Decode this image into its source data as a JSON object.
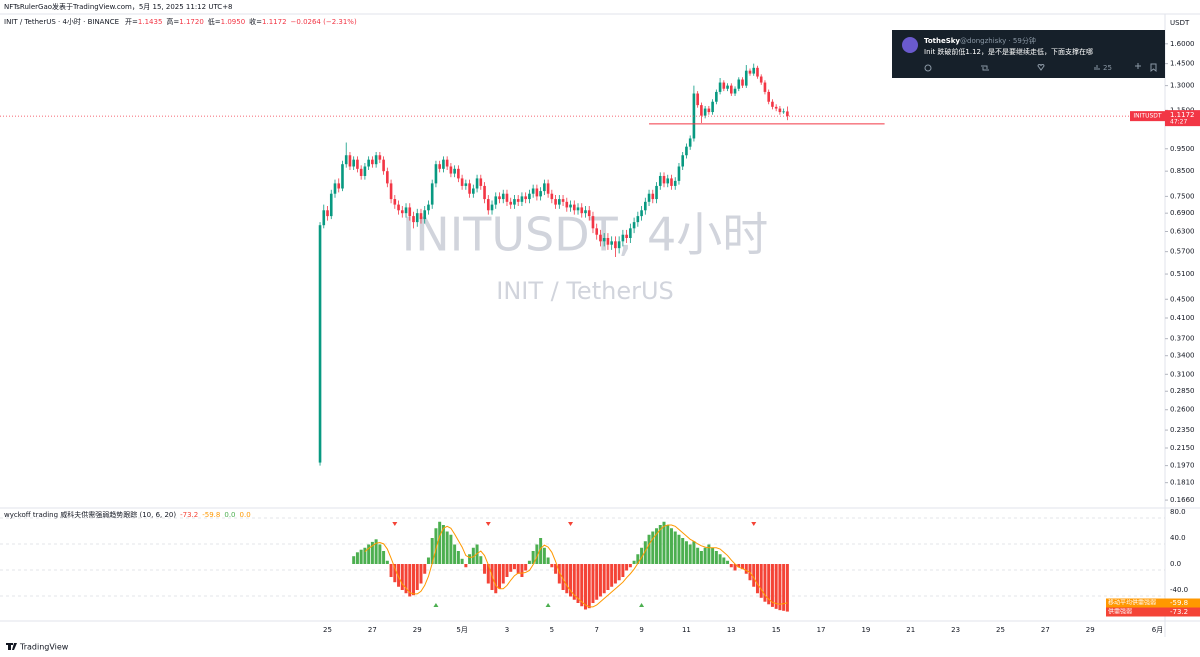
{
  "header": {
    "publisher": "NFTsRulerGao发表于TradingView.com，5月 15, 2025 11:12 UTC+8"
  },
  "chart_data": [
    {
      "type": "candlestick",
      "title": "INIT / TetherUS · 4小时 · BINANCE",
      "watermark": "INITUSDT, 4小时",
      "watermark_subtitle": "INIT / TetherUS",
      "ohlc_legend": [
        {
          "name": "开=",
          "value": {
            "value": 1.1435,
            "label": "1.1435"
          }
        },
        {
          "name": "高=",
          "value": {
            "value": 1.172,
            "label": "1.1720"
          }
        },
        {
          "name": "低=",
          "value": {
            "value": 1.095,
            "label": "1.0950"
          }
        },
        {
          "name": "收=",
          "value": {
            "value": 1.1172,
            "label": "1.1172"
          }
        }
      ],
      "change": "−0.0264 (−2.31%)",
      "symbol_tag": "INITUSDT",
      "countdown": "47:27",
      "y_unit": "USDT",
      "log_scale": true,
      "up_color": "#089981",
      "down_color": "#f23645",
      "open": [
        0.2,
        0.65,
        0.7,
        0.68,
        0.76,
        0.8,
        0.78,
        0.88,
        0.92,
        0.87,
        0.9,
        0.86,
        0.83,
        0.87,
        0.9,
        0.88,
        0.92,
        0.9,
        0.85,
        0.8,
        0.74,
        0.72,
        0.7,
        0.69,
        0.71,
        0.68,
        0.66,
        0.69,
        0.67,
        0.7,
        0.72,
        0.8,
        0.88,
        0.86,
        0.9,
        0.87,
        0.84,
        0.86,
        0.82,
        0.79,
        0.8,
        0.76,
        0.78,
        0.82,
        0.79,
        0.74,
        0.7,
        0.72,
        0.75,
        0.74,
        0.76,
        0.73,
        0.72,
        0.74,
        0.73,
        0.75,
        0.74,
        0.76,
        0.78,
        0.75,
        0.77,
        0.8,
        0.76,
        0.74,
        0.72,
        0.74,
        0.73,
        0.71,
        0.72,
        0.7,
        0.71,
        0.69,
        0.7,
        0.68,
        0.64,
        0.62,
        0.6,
        0.61,
        0.59,
        0.6,
        0.58,
        0.6,
        0.62,
        0.61,
        0.64,
        0.66,
        0.68,
        0.7,
        0.73,
        0.76,
        0.74,
        0.79,
        0.83,
        0.8,
        0.82,
        0.79,
        0.81,
        0.87,
        0.92,
        0.96,
        1.0,
        1.25,
        1.18,
        1.12,
        1.16,
        1.14,
        1.2,
        1.26,
        1.32,
        1.28,
        1.3,
        1.25,
        1.28,
        1.34,
        1.3,
        1.4,
        1.38,
        1.42,
        1.36,
        1.32,
        1.26,
        1.2,
        1.17,
        1.16,
        1.14,
        1.1435
      ],
      "high": [
        0.66,
        0.72,
        0.715,
        0.775,
        0.815,
        0.82,
        0.895,
        0.98,
        0.935,
        0.915,
        0.915,
        0.875,
        0.885,
        0.915,
        0.915,
        0.935,
        0.935,
        0.915,
        0.865,
        0.815,
        0.755,
        0.735,
        0.715,
        0.725,
        0.725,
        0.695,
        0.705,
        0.705,
        0.715,
        0.735,
        0.815,
        0.895,
        0.895,
        0.915,
        0.915,
        0.885,
        0.875,
        0.875,
        0.835,
        0.815,
        0.815,
        0.795,
        0.835,
        0.835,
        0.805,
        0.755,
        0.735,
        0.765,
        0.765,
        0.775,
        0.775,
        0.745,
        0.755,
        0.755,
        0.765,
        0.765,
        0.775,
        0.795,
        0.795,
        0.785,
        0.815,
        0.815,
        0.775,
        0.755,
        0.755,
        0.755,
        0.745,
        0.735,
        0.735,
        0.725,
        0.725,
        0.715,
        0.715,
        0.695,
        0.655,
        0.635,
        0.625,
        0.625,
        0.615,
        0.615,
        0.615,
        0.635,
        0.635,
        0.655,
        0.675,
        0.695,
        0.715,
        0.745,
        0.775,
        0.775,
        0.805,
        0.845,
        0.845,
        0.835,
        0.835,
        0.825,
        0.885,
        0.935,
        0.975,
        1.015,
        1.3,
        1.265,
        1.195,
        1.175,
        1.175,
        1.215,
        1.275,
        1.35,
        1.335,
        1.315,
        1.315,
        1.295,
        1.355,
        1.355,
        1.44,
        1.415,
        1.45,
        1.435,
        1.375,
        1.335,
        1.275,
        1.215,
        1.185,
        1.175,
        1.16,
        1.172
      ],
      "low": [
        0.197,
        0.64,
        0.665,
        0.67,
        0.745,
        0.765,
        0.77,
        0.865,
        0.855,
        0.855,
        0.845,
        0.815,
        0.815,
        0.855,
        0.865,
        0.865,
        0.885,
        0.835,
        0.785,
        0.725,
        0.705,
        0.685,
        0.675,
        0.675,
        0.665,
        0.64,
        0.645,
        0.655,
        0.655,
        0.685,
        0.705,
        0.785,
        0.845,
        0.845,
        0.855,
        0.825,
        0.825,
        0.805,
        0.775,
        0.775,
        0.745,
        0.745,
        0.765,
        0.775,
        0.725,
        0.685,
        0.685,
        0.705,
        0.725,
        0.725,
        0.715,
        0.705,
        0.705,
        0.715,
        0.715,
        0.725,
        0.725,
        0.745,
        0.735,
        0.735,
        0.755,
        0.745,
        0.725,
        0.705,
        0.705,
        0.715,
        0.695,
        0.695,
        0.685,
        0.685,
        0.675,
        0.675,
        0.665,
        0.625,
        0.605,
        0.585,
        0.585,
        0.575,
        0.575,
        0.555,
        0.565,
        0.585,
        0.595,
        0.595,
        0.625,
        0.645,
        0.665,
        0.685,
        0.715,
        0.725,
        0.725,
        0.775,
        0.785,
        0.785,
        0.775,
        0.775,
        0.795,
        0.855,
        0.905,
        0.945,
        0.985,
        1.165,
        1.08,
        1.105,
        1.125,
        1.125,
        1.185,
        1.245,
        1.265,
        1.265,
        1.235,
        1.235,
        1.265,
        1.285,
        1.285,
        1.365,
        1.365,
        1.345,
        1.305,
        1.245,
        1.185,
        1.155,
        1.145,
        1.125,
        1.13,
        1.095
      ],
      "close": [
        0.65,
        0.7,
        0.68,
        0.76,
        0.8,
        0.78,
        0.88,
        0.92,
        0.87,
        0.9,
        0.86,
        0.83,
        0.87,
        0.9,
        0.88,
        0.92,
        0.9,
        0.85,
        0.8,
        0.74,
        0.72,
        0.7,
        0.69,
        0.71,
        0.68,
        0.66,
        0.69,
        0.67,
        0.7,
        0.72,
        0.8,
        0.88,
        0.86,
        0.9,
        0.87,
        0.84,
        0.86,
        0.82,
        0.79,
        0.8,
        0.76,
        0.78,
        0.82,
        0.79,
        0.74,
        0.7,
        0.72,
        0.75,
        0.74,
        0.76,
        0.73,
        0.72,
        0.74,
        0.73,
        0.75,
        0.74,
        0.76,
        0.78,
        0.75,
        0.77,
        0.8,
        0.76,
        0.74,
        0.72,
        0.74,
        0.73,
        0.71,
        0.72,
        0.7,
        0.71,
        0.69,
        0.7,
        0.68,
        0.64,
        0.62,
        0.6,
        0.61,
        0.59,
        0.6,
        0.58,
        0.6,
        0.62,
        0.61,
        0.64,
        0.66,
        0.68,
        0.7,
        0.73,
        0.76,
        0.74,
        0.79,
        0.83,
        0.8,
        0.82,
        0.79,
        0.81,
        0.87,
        0.92,
        0.96,
        1.0,
        1.25,
        1.18,
        1.12,
        1.16,
        1.14,
        1.2,
        1.26,
        1.32,
        1.28,
        1.3,
        1.25,
        1.28,
        1.34,
        1.3,
        1.4,
        1.38,
        1.42,
        1.36,
        1.32,
        1.26,
        1.2,
        1.17,
        1.16,
        1.14,
        1.1435,
        1.1172
      ],
      "xlim": [
        -85.6,
        226
      ],
      "xticks": [
        {
          "value": 2,
          "label": "25"
        },
        {
          "value": 14,
          "label": "27"
        },
        {
          "value": 26,
          "label": "29"
        },
        {
          "value": 38,
          "label": "5月"
        },
        {
          "value": 50,
          "label": "3"
        },
        {
          "value": 62,
          "label": "5"
        },
        {
          "value": 74,
          "label": "7"
        },
        {
          "value": 86,
          "label": "9"
        },
        {
          "value": 98,
          "label": "11"
        },
        {
          "value": 110,
          "label": "13"
        },
        {
          "value": 122,
          "label": "15"
        },
        {
          "value": 134,
          "label": "17"
        },
        {
          "value": 146,
          "label": "19"
        },
        {
          "value": 158,
          "label": "21"
        },
        {
          "value": 170,
          "label": "23"
        },
        {
          "value": 182,
          "label": "25"
        },
        {
          "value": 194,
          "label": "27"
        },
        {
          "value": 206,
          "label": "29"
        },
        {
          "value": 224,
          "label": "6月"
        }
      ],
      "ylim": [
        0.162,
        1.846
      ],
      "yticks": [
        {
          "value": 1.6,
          "label": "1.6000"
        },
        {
          "value": 1.45,
          "label": "1.4500"
        },
        {
          "value": 1.3,
          "label": "1.3000"
        },
        {
          "value": 1.15,
          "label": "1.1500"
        },
        {
          "value": 0.95,
          "label": "0.9500"
        },
        {
          "value": 0.85,
          "label": "0.8500"
        },
        {
          "value": 0.75,
          "label": "0.7500"
        },
        {
          "value": 0.69,
          "label": "0.6900"
        },
        {
          "value": 0.63,
          "label": "0.6300"
        },
        {
          "value": 0.57,
          "label": "0.5700"
        },
        {
          "value": 0.51,
          "label": "0.5100"
        },
        {
          "value": 0.45,
          "label": "0.4500"
        },
        {
          "value": 0.41,
          "label": "0.4100"
        },
        {
          "value": 0.37,
          "label": "0.3700"
        },
        {
          "value": 0.34,
          "label": "0.3400"
        },
        {
          "value": 0.31,
          "label": "0.3100"
        },
        {
          "value": 0.285,
          "label": "0.2850"
        },
        {
          "value": 0.26,
          "label": "0.2600"
        },
        {
          "value": 0.235,
          "label": "0.2350"
        },
        {
          "value": 0.215,
          "label": "0.2150"
        },
        {
          "value": 0.197,
          "label": "0.1970"
        },
        {
          "value": 0.181,
          "label": "0.1810"
        },
        {
          "value": 0.166,
          "label": "0.1660"
        }
      ],
      "support_line": {
        "value": 1.075,
        "x": [
          88,
          151
        ],
        "color": "#f23645"
      }
    },
    {
      "type": "bar",
      "title": "wyckoff trading 威科夫供需强弱趋势跟踪 (10, 6, 20)",
      "series": [
        {
          "name": "供需强弱",
          "up_color": "#4caf50",
          "down_color": "#f44336",
          "values": [
            null,
            null,
            null,
            null,
            null,
            null,
            null,
            null,
            null,
            12,
            18,
            22,
            25,
            30,
            34,
            38,
            30,
            20,
            5,
            -20,
            -28,
            -35,
            -40,
            -45,
            -50,
            -48,
            -40,
            -30,
            -15,
            10,
            40,
            55,
            65,
            60,
            50,
            45,
            30,
            20,
            8,
            -5,
            15,
            25,
            30,
            12,
            -15,
            -30,
            -40,
            -45,
            -38,
            -30,
            -20,
            -12,
            -8,
            -15,
            -20,
            -10,
            5,
            20,
            30,
            40,
            25,
            10,
            -5,
            -15,
            -30,
            -40,
            -45,
            -50,
            -55,
            -60,
            -65,
            -70,
            -68,
            -60,
            -55,
            -50,
            -45,
            -40,
            -35,
            -30,
            -25,
            -20,
            -10,
            -5,
            5,
            15,
            25,
            35,
            45,
            50,
            55,
            60,
            65,
            60,
            55,
            50,
            45,
            40,
            35,
            30,
            35,
            25,
            20,
            25,
            30,
            25,
            20,
            15,
            10,
            5,
            -5,
            -10,
            -5,
            -8,
            -15,
            -25,
            -35,
            -45,
            -52,
            -58,
            -62,
            -66,
            -69,
            -71,
            -72,
            -73.2
          ]
        },
        {
          "name": "移动平均供需强弱",
          "color": "#ff9800",
          "values": [
            null,
            null,
            null,
            null,
            null,
            null,
            null,
            null,
            null,
            null,
            null,
            null,
            19,
            24,
            28,
            32,
            33,
            31,
            23,
            9,
            -6,
            -20,
            -31,
            -37,
            -44,
            -46,
            -46,
            -42,
            -33,
            -19,
            1,
            23,
            43,
            55,
            58,
            55,
            46,
            36,
            26,
            13,
            10,
            11,
            16,
            20,
            13,
            -1,
            -18,
            -33,
            -38,
            -38,
            -33,
            -25,
            -18,
            -14,
            -14,
            -13,
            -10,
            -1,
            11,
            24,
            29,
            26,
            18,
            4,
            -13,
            -23,
            -33,
            -41,
            -48,
            -53,
            -58,
            -63,
            -66,
            -66,
            -63,
            -58,
            -53,
            -48,
            -43,
            -38,
            -33,
            -28,
            -21,
            -15,
            -8,
            1,
            10,
            20,
            30,
            39,
            46,
            53,
            58,
            60,
            60,
            58,
            53,
            48,
            43,
            38,
            35,
            31,
            28,
            26,
            25,
            25,
            25,
            23,
            18,
            13,
            6,
            0,
            -5,
            -7,
            -10,
            -13,
            -21,
            -31,
            -39,
            -48,
            -54,
            -59,
            -61,
            -62,
            -61,
            -59.8
          ]
        }
      ],
      "extra_values": [
        {
          "value": 0,
          "label": "0.0",
          "color": "#4caf50"
        },
        {
          "value": 0,
          "label": "0.0",
          "color": "#ff9800"
        }
      ],
      "ylim": [
        -80,
        80
      ],
      "yticks": [
        {
          "value": 80,
          "label": "80.0"
        },
        {
          "value": 40,
          "label": "40.0"
        },
        {
          "value": 0,
          "label": "0.0"
        },
        {
          "value": -40,
          "label": "-40.0"
        }
      ],
      "sell_signals": [
        20,
        45,
        67,
        116
      ],
      "buy_signals": [
        31,
        61,
        86
      ]
    }
  ],
  "tweet": {
    "name": "TotheSky",
    "handle": "@dongzhisky · 59分钟",
    "text": "Init 跌破前低1.12，是不是要继续走低，下面支撑在哪",
    "views": "25"
  },
  "branding": "TradingView"
}
